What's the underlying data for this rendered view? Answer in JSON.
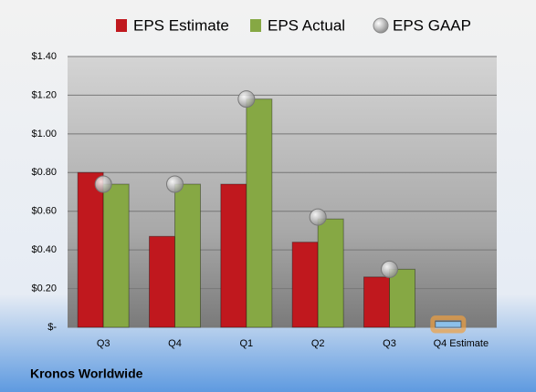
{
  "chart_data": {
    "type": "bar",
    "categories": [
      "Q3",
      "Q4",
      "Q1",
      "Q2",
      "Q3",
      "Q4 Estimate"
    ],
    "series": [
      {
        "name": "EPS Estimate",
        "color": "#c0181e",
        "values": [
          0.8,
          0.47,
          0.74,
          0.44,
          0.26,
          0.03
        ]
      },
      {
        "name": "EPS Actual",
        "color": "#86a844",
        "values": [
          0.74,
          0.74,
          1.18,
          0.56,
          0.3,
          null
        ]
      },
      {
        "name": "EPS GAAP",
        "color": "#a9a9a9",
        "type": "scatter",
        "values": [
          0.74,
          0.74,
          1.18,
          0.57,
          0.3,
          null
        ]
      }
    ],
    "highlight": {
      "series": 0,
      "index": 5,
      "color": "#8cc0ea",
      "glow": "#f0a040"
    },
    "ylim": [
      0,
      1.4
    ],
    "yticks": [
      {
        "value": 0,
        "label": "$-"
      },
      {
        "value": 0.2,
        "label": "$0.20"
      },
      {
        "value": 0.4,
        "label": "$0.40"
      },
      {
        "value": 0.6,
        "label": "$0.60"
      },
      {
        "value": 0.8,
        "label": "$0.80"
      },
      {
        "value": 1.0,
        "label": "$1.00"
      },
      {
        "value": 1.2,
        "label": "$1.20"
      },
      {
        "value": 1.4,
        "label": "$1.40"
      }
    ],
    "grid": true,
    "legend": "top",
    "footer": "Kronos Worldwide"
  }
}
